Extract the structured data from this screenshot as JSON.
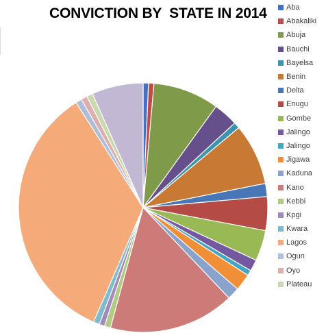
{
  "chart_data": {
    "type": "pie",
    "title": "CONVICTION BY  STATE IN 2014",
    "legend_position": "right",
    "slices": [
      {
        "label": "Aba",
        "value": 0.7,
        "color": "#4472c4"
      },
      {
        "label": "Abakaliki",
        "value": 0.7,
        "color": "#be4b48"
      },
      {
        "label": "Abuja",
        "value": 8.6,
        "color": "#7f9a48"
      },
      {
        "label": "Bauchi",
        "value": 3.2,
        "color": "#66508b"
      },
      {
        "label": "Bayelsa",
        "value": 0.8,
        "color": "#3c93ac"
      },
      {
        "label": "Benin",
        "value": 8.0,
        "color": "#c87934"
      },
      {
        "label": "Delta",
        "value": 1.7,
        "color": "#4777b6"
      },
      {
        "label": "Enugu",
        "value": 4.4,
        "color": "#b44b45"
      },
      {
        "label": "Gombe",
        "value": 4.0,
        "color": "#98b954"
      },
      {
        "label": "Jalingo",
        "value": 1.5,
        "color": "#7559a0"
      },
      {
        "label": "Jalingo",
        "value": 0.7,
        "color": "#45a5c2"
      },
      {
        "label": "Jigawa",
        "value": 2.2,
        "color": "#f08f38"
      },
      {
        "label": "Kaduna",
        "value": 1.6,
        "color": "#8aa3cc"
      },
      {
        "label": "Kano",
        "value": 16.4,
        "color": "#cc7b79"
      },
      {
        "label": "Kebbi",
        "value": 0.8,
        "color": "#b2ca81"
      },
      {
        "label": "Kpgi",
        "value": 0.7,
        "color": "#a08bba"
      },
      {
        "label": "Kwara",
        "value": 0.8,
        "color": "#7fbbcf"
      },
      {
        "label": "Lagos",
        "value": 34.6,
        "color": "#f5ab79"
      },
      {
        "label": "Ogun",
        "value": 0.8,
        "color": "#aebdd8"
      },
      {
        "label": "Oyo",
        "value": 0.8,
        "color": "#dcaeae"
      },
      {
        "label": "Plateau",
        "value": 0.8,
        "color": "#c9d9ad"
      },
      {
        "label": "",
        "value": 6.7,
        "color": "#c3b8d4"
      }
    ]
  }
}
